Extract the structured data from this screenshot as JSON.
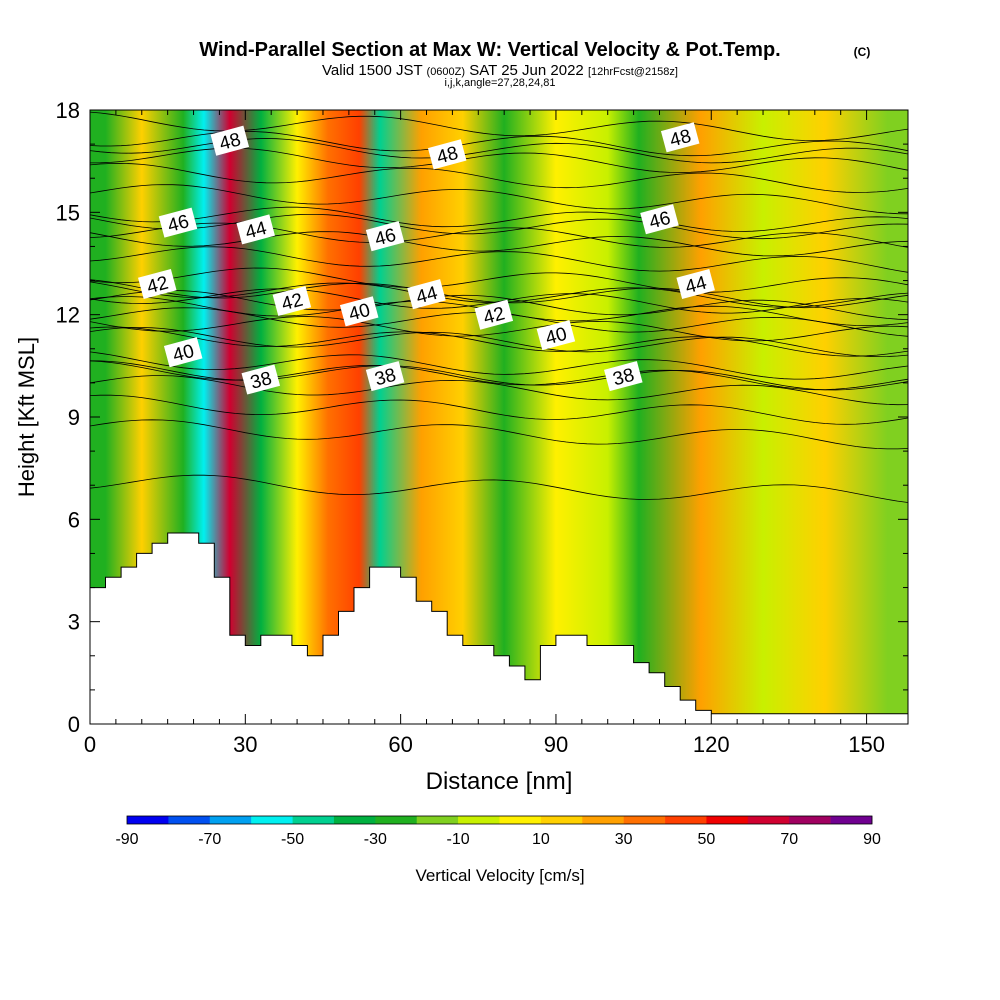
{
  "chart_data": {
    "type": "heatmap",
    "title": "Wind-Parallel Section at Max W: Vertical Velocity & Pot.Temp.",
    "title_mark": "(C)",
    "subtitle_parts": [
      "Valid 1500 JST",
      "(0600Z)",
      "SAT 25 Jun 2022",
      "[12hrFcst@2158z]"
    ],
    "subtitle2": "i,j,k,angle=27,28,24,81",
    "xlabel": "Distance [nm]",
    "ylabel": "Height [Kft MSL]",
    "xlim": [
      0,
      158
    ],
    "ylim": [
      0,
      18
    ],
    "x_ticks": [
      "0",
      "30",
      "60",
      "90",
      "120",
      "150"
    ],
    "y_ticks": [
      "0",
      "3",
      "6",
      "9",
      "12",
      "15",
      "18"
    ],
    "colorbar": {
      "label": "Vertical Velocity [cm/s]",
      "tick_labels": [
        "-90",
        "-70",
        "-50",
        "-30",
        "-10",
        "10",
        "30",
        "50",
        "70",
        "90"
      ],
      "colors": [
        "#0000f0",
        "#0050f0",
        "#00a0f0",
        "#00f0f0",
        "#00d090",
        "#00b040",
        "#20b020",
        "#80d020",
        "#c8f000",
        "#fff000",
        "#ffd000",
        "#ffa000",
        "#ff7000",
        "#ff4000",
        "#f00000",
        "#d00030",
        "#a00060",
        "#700090"
      ]
    },
    "filled_field_bands": [
      {
        "x": 3,
        "w_cm_s": -30
      },
      {
        "x": 10,
        "w_cm_s": 15
      },
      {
        "x": 18,
        "w_cm_s": -25
      },
      {
        "x": 22,
        "w_cm_s": -55
      },
      {
        "x": 27,
        "w_cm_s": 60
      },
      {
        "x": 33,
        "w_cm_s": -35
      },
      {
        "x": 40,
        "w_cm_s": 5
      },
      {
        "x": 46,
        "w_cm_s": 30
      },
      {
        "x": 52,
        "w_cm_s": 45
      },
      {
        "x": 56,
        "w_cm_s": -50
      },
      {
        "x": 64,
        "w_cm_s": 25
      },
      {
        "x": 72,
        "w_cm_s": 10
      },
      {
        "x": 80,
        "w_cm_s": -25
      },
      {
        "x": 90,
        "w_cm_s": 5
      },
      {
        "x": 100,
        "w_cm_s": -10
      },
      {
        "x": 106,
        "w_cm_s": -30
      },
      {
        "x": 118,
        "w_cm_s": 20
      },
      {
        "x": 130,
        "w_cm_s": -5
      },
      {
        "x": 142,
        "w_cm_s": 10
      },
      {
        "x": 154,
        "w_cm_s": -20
      }
    ],
    "terrain": {
      "x": [
        0,
        3,
        6,
        9,
        12,
        15,
        18,
        21,
        24,
        27,
        30,
        33,
        36,
        39,
        42,
        45,
        48,
        51,
        54,
        57,
        60,
        63,
        66,
        69,
        72,
        75,
        78,
        81,
        84,
        87,
        90,
        93,
        96,
        99,
        102,
        105,
        108,
        111,
        114,
        117,
        120,
        158
      ],
      "height": [
        4.0,
        4.3,
        4.6,
        5.0,
        5.3,
        5.6,
        5.6,
        5.3,
        4.3,
        2.6,
        2.3,
        2.6,
        2.6,
        2.3,
        2.0,
        2.6,
        3.3,
        4.0,
        4.6,
        4.6,
        4.3,
        3.6,
        3.3,
        2.6,
        2.3,
        2.3,
        2.0,
        1.7,
        1.3,
        2.3,
        2.6,
        2.6,
        2.3,
        2.3,
        2.3,
        1.8,
        1.5,
        1.1,
        0.7,
        0.4,
        0.3,
        0.3
      ]
    },
    "theta_contours": [
      {
        "label": "38",
        "height": 9.8,
        "label_x": 33,
        "label_y": 10.1
      },
      {
        "label": "40",
        "height": 11.2,
        "label_x": 18,
        "label_y": 10.9
      },
      {
        "label": "42",
        "height": 12.6,
        "label_x": 13,
        "label_y": 12.9
      },
      {
        "label": "46",
        "height": 14.6,
        "label_x": 17,
        "label_y": 14.7
      },
      {
        "label": "48",
        "height": 16.8,
        "label_x": 27,
        "label_y": 17.1
      },
      {
        "label": "44",
        "height": 14.3,
        "label_x": 32,
        "label_y": 14.5
      },
      {
        "label": "42",
        "height": 12.3,
        "label_x": 39,
        "label_y": 12.4
      },
      {
        "label": "40",
        "height": 12.1,
        "label_x": 52,
        "label_y": 12.1
      },
      {
        "label": "38",
        "height": 10.2,
        "label_x": 57,
        "label_y": 10.2
      },
      {
        "label": "46",
        "height": 14.1,
        "label_x": 57,
        "label_y": 14.3
      },
      {
        "label": "44",
        "height": 12.4,
        "label_x": 65,
        "label_y": 12.6
      },
      {
        "label": "48",
        "height": 16.5,
        "label_x": 69,
        "label_y": 16.7
      },
      {
        "label": "42",
        "height": 11.8,
        "label_x": 78,
        "label_y": 12.0
      },
      {
        "label": "40",
        "height": 11.2,
        "label_x": 90,
        "label_y": 11.4
      },
      {
        "label": "38",
        "height": 10.2,
        "label_x": 103,
        "label_y": 10.2
      },
      {
        "label": "44",
        "height": 12.6,
        "label_x": 117,
        "label_y": 12.9
      },
      {
        "label": "46",
        "height": 14.8,
        "label_x": 110,
        "label_y": 14.8
      },
      {
        "label": "48",
        "height": 17.0,
        "label_x": 114,
        "label_y": 17.2
      }
    ],
    "extra_contour_heights": [
      6.9,
      8.5,
      9.2,
      10.5,
      11.6,
      13.0,
      13.6,
      15.4,
      16.0,
      17.5
    ]
  }
}
